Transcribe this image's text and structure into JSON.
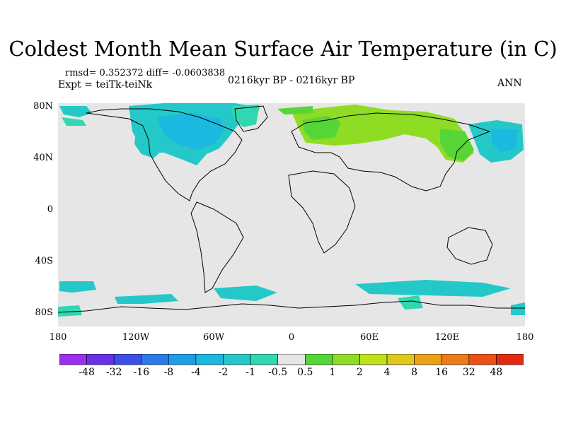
{
  "title": "Coldest Month Mean Surface Air Temperature (in C)",
  "stats": {
    "rmsd_label": "rmsd= 0.352372 diff= -0.0603838"
  },
  "experiment": "Expt = teiTk-teiNk",
  "period": "0216kyr BP - 0216kyr BP",
  "season": "ANN",
  "lat_labels": [
    "80N",
    "40N",
    "0",
    "40S",
    "80S"
  ],
  "lon_labels": [
    "180",
    "120W",
    "60W",
    "0",
    "60E",
    "120E",
    "180"
  ],
  "colorbar": {
    "labels": [
      "-48",
      "-32",
      "-16",
      "-8",
      "-4",
      "-2",
      "-1",
      "-0.5",
      "0.5",
      "1",
      "2",
      "4",
      "8",
      "16",
      "32",
      "48"
    ],
    "colors": [
      "#9b2ff0",
      "#6a2fe8",
      "#3d4fe6",
      "#2a7ae8",
      "#1e9ee8",
      "#1bb8e0",
      "#24c8c8",
      "#2fd8b0",
      "#e6e6e6",
      "#55d636",
      "#8fdc24",
      "#bfe01c",
      "#e0c81c",
      "#eca018",
      "#ee7a18",
      "#ec5018",
      "#e22a10"
    ]
  }
}
